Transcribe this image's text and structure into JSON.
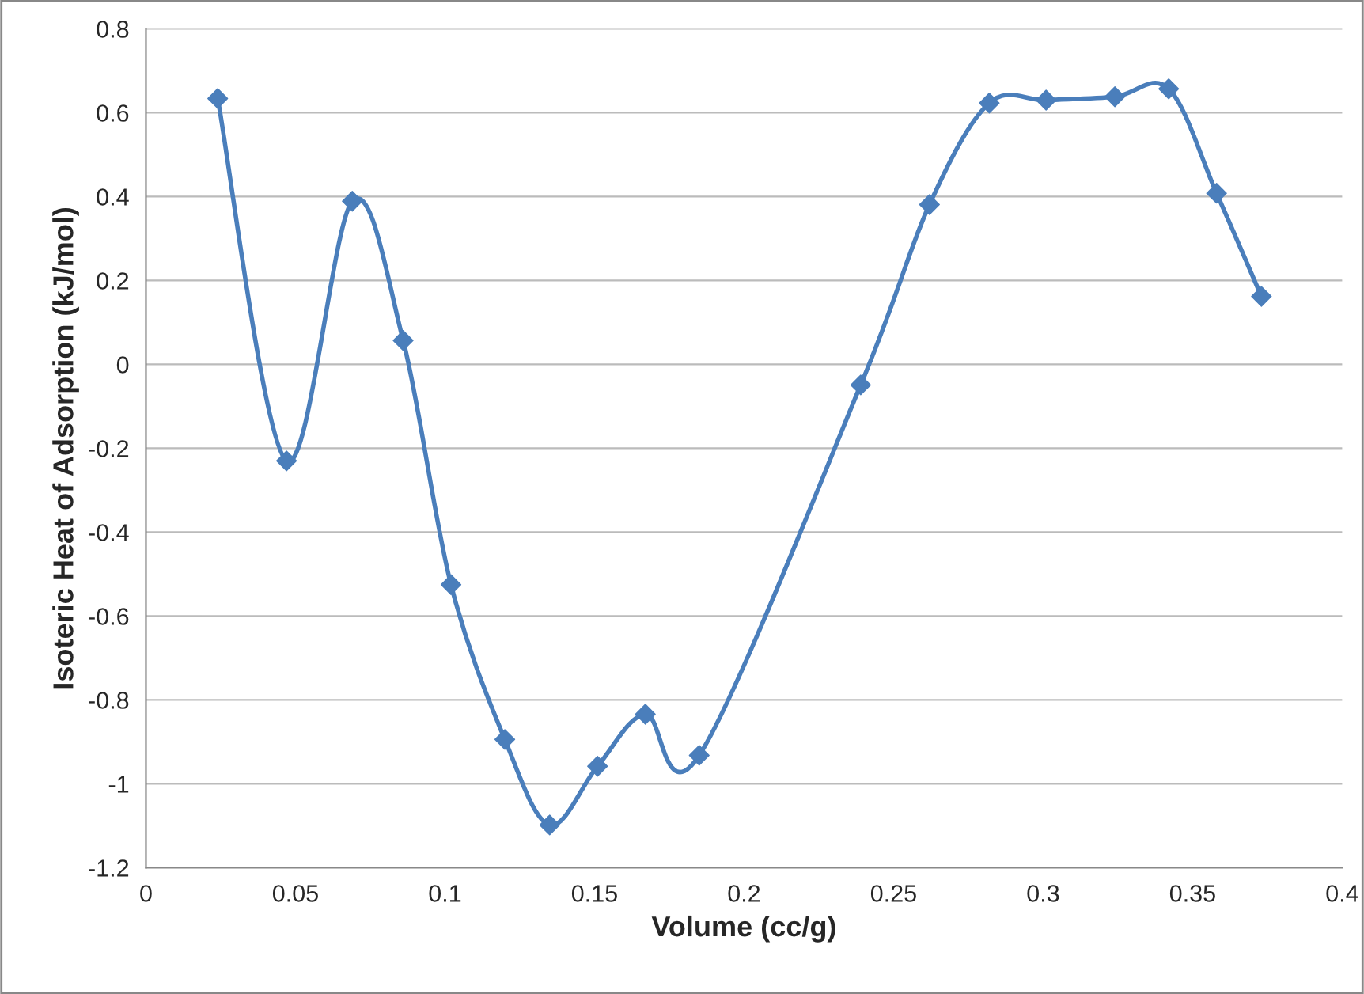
{
  "chart_data": {
    "type": "line",
    "xlabel": "Volume (cc/g)",
    "ylabel": "Isoteric Heat of Adsorption (kJ/mol)",
    "x": [
      0.024,
      0.047,
      0.069,
      0.086,
      0.102,
      0.12,
      0.135,
      0.151,
      0.167,
      0.185,
      0.239,
      0.262,
      0.282,
      0.301,
      0.324,
      0.342,
      0.358,
      0.373
    ],
    "series": [
      {
        "color": "#4a7ebb",
        "values": [
          0.634,
          -0.23,
          0.389,
          0.057,
          -0.525,
          -0.894,
          -1.098,
          -0.958,
          -0.834,
          -0.932,
          -0.049,
          0.381,
          0.623,
          0.63,
          0.638,
          0.657,
          0.408,
          0.162
        ]
      }
    ],
    "xlim": [
      0,
      0.4
    ],
    "xticks": [
      0,
      0.05,
      0.1,
      0.15,
      0.2,
      0.25,
      0.3,
      0.35,
      0.4
    ],
    "ylim": [
      -1.2,
      0.8
    ],
    "yticks": [
      -1.2,
      -1,
      -0.8,
      -0.6,
      -0.4,
      -0.2,
      0,
      0.2,
      0.4,
      0.6,
      0.8
    ],
    "grid": "y",
    "marker": "diamond",
    "line_style": "solid",
    "legend": false
  }
}
